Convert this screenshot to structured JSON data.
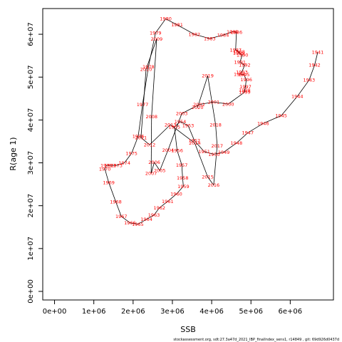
{
  "chart_data": {
    "type": "line",
    "xlabel": "SSB",
    "ylabel": "R(age 1)",
    "xlim": [
      -300000,
      7100000
    ],
    "ylim": [
      -2000000,
      66000000
    ],
    "x_ticks": [
      {
        "v": 0,
        "label": "0e+00"
      },
      {
        "v": 1000000,
        "label": "1e+06"
      },
      {
        "v": 2000000,
        "label": "2e+06"
      },
      {
        "v": 3000000,
        "label": "3e+06"
      },
      {
        "v": 4000000,
        "label": "4e+06"
      },
      {
        "v": 5000000,
        "label": "5e+06"
      },
      {
        "v": 6000000,
        "label": "6e+06"
      }
    ],
    "y_ticks": [
      {
        "v": 0,
        "label": "0e+00"
      },
      {
        "v": 10000000,
        "label": "1e+07"
      },
      {
        "v": 20000000,
        "label": "2e+07"
      },
      {
        "v": 30000000,
        "label": "3e+07"
      },
      {
        "v": 40000000,
        "label": "4e+07"
      },
      {
        "v": 50000000,
        "label": "5e+07"
      },
      {
        "v": 60000000,
        "label": "6e+07"
      }
    ],
    "grid": false,
    "line_color": "#000000",
    "label_color": "#ff0000",
    "points": [
      {
        "year": "1941",
        "x": 6700000,
        "y": 55800000
      },
      {
        "year": "1942",
        "x": 6620000,
        "y": 52800000
      },
      {
        "year": "1943",
        "x": 6480000,
        "y": 49300000
      },
      {
        "year": "1944",
        "x": 6180000,
        "y": 45500000
      },
      {
        "year": "1945",
        "x": 5770000,
        "y": 41000000
      },
      {
        "year": "1946",
        "x": 5310000,
        "y": 39200000
      },
      {
        "year": "1947",
        "x": 4920000,
        "y": 37000000
      },
      {
        "year": "1948",
        "x": 4630000,
        "y": 34600000
      },
      {
        "year": "1949",
        "x": 4310000,
        "y": 32500000
      },
      {
        "year": "1950",
        "x": 4060000,
        "y": 32000000
      },
      {
        "year": "1951",
        "x": 3810000,
        "y": 32600000
      },
      {
        "year": "1952",
        "x": 3560000,
        "y": 35200000
      },
      {
        "year": "1953",
        "x": 3400000,
        "y": 38700000
      },
      {
        "year": "1954",
        "x": 3200000,
        "y": 39600000
      },
      {
        "year": "1955",
        "x": 3050000,
        "y": 38400000
      },
      {
        "year": "1956",
        "x": 3120000,
        "y": 32900000
      },
      {
        "year": "1957",
        "x": 3240000,
        "y": 29500000
      },
      {
        "year": "1958",
        "x": 3260000,
        "y": 26500000
      },
      {
        "year": "1959",
        "x": 3280000,
        "y": 24500000
      },
      {
        "year": "1960",
        "x": 3100000,
        "y": 22700000
      },
      {
        "year": "1961",
        "x": 2880000,
        "y": 21000000
      },
      {
        "year": "1962",
        "x": 2670000,
        "y": 19500000
      },
      {
        "year": "1963",
        "x": 2530000,
        "y": 17800000
      },
      {
        "year": "1964",
        "x": 2340000,
        "y": 16800000
      },
      {
        "year": "1965",
        "x": 2120000,
        "y": 15700000
      },
      {
        "year": "1966",
        "x": 1920000,
        "y": 16000000
      },
      {
        "year": "1967",
        "x": 1700000,
        "y": 17500000
      },
      {
        "year": "1968",
        "x": 1560000,
        "y": 20900000
      },
      {
        "year": "1969",
        "x": 1380000,
        "y": 25400000
      },
      {
        "year": "1970",
        "x": 1280000,
        "y": 28600000
      },
      {
        "year": "1971",
        "x": 1320000,
        "y": 29400000
      },
      {
        "year": "1972",
        "x": 1420000,
        "y": 29400000
      },
      {
        "year": "1973",
        "x": 1580000,
        "y": 29400000
      },
      {
        "year": "1974",
        "x": 1780000,
        "y": 30000000
      },
      {
        "year": "1975",
        "x": 1960000,
        "y": 32200000
      },
      {
        "year": "1976",
        "x": 2130000,
        "y": 36200000
      },
      {
        "year": "1977",
        "x": 2240000,
        "y": 43600000
      },
      {
        "year": "1978",
        "x": 2390000,
        "y": 52400000
      },
      {
        "year": "1979",
        "x": 2570000,
        "y": 60300000
      },
      {
        "year": "1980",
        "x": 2830000,
        "y": 63600000
      },
      {
        "year": "1981",
        "x": 3120000,
        "y": 62200000
      },
      {
        "year": "1982",
        "x": 3560000,
        "y": 60000000
      },
      {
        "year": "1983",
        "x": 3950000,
        "y": 59000000
      },
      {
        "year": "1984",
        "x": 4290000,
        "y": 59800000
      },
      {
        "year": "1985",
        "x": 4530000,
        "y": 60600000
      },
      {
        "year": "1986",
        "x": 4630000,
        "y": 60500000
      },
      {
        "year": "1987",
        "x": 4610000,
        "y": 56300000
      },
      {
        "year": "1988",
        "x": 4700000,
        "y": 55900000
      },
      {
        "year": "1989",
        "x": 4690000,
        "y": 55600000
      },
      {
        "year": "1990",
        "x": 4780000,
        "y": 55200000
      },
      {
        "year": "1991",
        "x": 4720000,
        "y": 53500000
      },
      {
        "year": "1992",
        "x": 4840000,
        "y": 52800000
      },
      {
        "year": "1993",
        "x": 4770000,
        "y": 51200000
      },
      {
        "year": "1994",
        "x": 4710000,
        "y": 50700000
      },
      {
        "year": "1995",
        "x": 4820000,
        "y": 50600000
      },
      {
        "year": "1996",
        "x": 4880000,
        "y": 49400000
      },
      {
        "year": "1997",
        "x": 4860000,
        "y": 47800000
      },
      {
        "year": "1998",
        "x": 4840000,
        "y": 46900000
      },
      {
        "year": "1999",
        "x": 4840000,
        "y": 46500000
      },
      {
        "year": "2000",
        "x": 4420000,
        "y": 43700000
      },
      {
        "year": "2001",
        "x": 4050000,
        "y": 44200000
      },
      {
        "year": "2002",
        "x": 3680000,
        "y": 43600000
      },
      {
        "year": "2003",
        "x": 3240000,
        "y": 41500000
      },
      {
        "year": "2004",
        "x": 2890000,
        "y": 33000000
      },
      {
        "year": "2005",
        "x": 2680000,
        "y": 28200000
      },
      {
        "year": "2006",
        "x": 2540000,
        "y": 30100000
      },
      {
        "year": "2007",
        "x": 2460000,
        "y": 27600000
      },
      {
        "year": "2008",
        "x": 2470000,
        "y": 40800000
      },
      {
        "year": "2009",
        "x": 2600000,
        "y": 58900000
      },
      {
        "year": "2010",
        "x": 2330000,
        "y": 51800000
      },
      {
        "year": "2011",
        "x": 2200000,
        "y": 35900000
      },
      {
        "year": "2012",
        "x": 2420000,
        "y": 34200000
      },
      {
        "year": "2013",
        "x": 2950000,
        "y": 38900000
      },
      {
        "year": "2014",
        "x": 3570000,
        "y": 34600000
      },
      {
        "year": "2015",
        "x": 3900000,
        "y": 26700000
      },
      {
        "year": "2016",
        "x": 4050000,
        "y": 24800000
      },
      {
        "year": "2017",
        "x": 4140000,
        "y": 34000000
      },
      {
        "year": "2018",
        "x": 4100000,
        "y": 38900000
      },
      {
        "year": "2019",
        "x": 3900000,
        "y": 50300000
      },
      {
        "year": "2020",
        "x": 3640000,
        "y": 42900000
      }
    ]
  },
  "footer": "stockassessment.org,  sdt:27.3a47d_2021_IBP_finalIndex_sens1, r14849 , git: 69d926d0437d"
}
